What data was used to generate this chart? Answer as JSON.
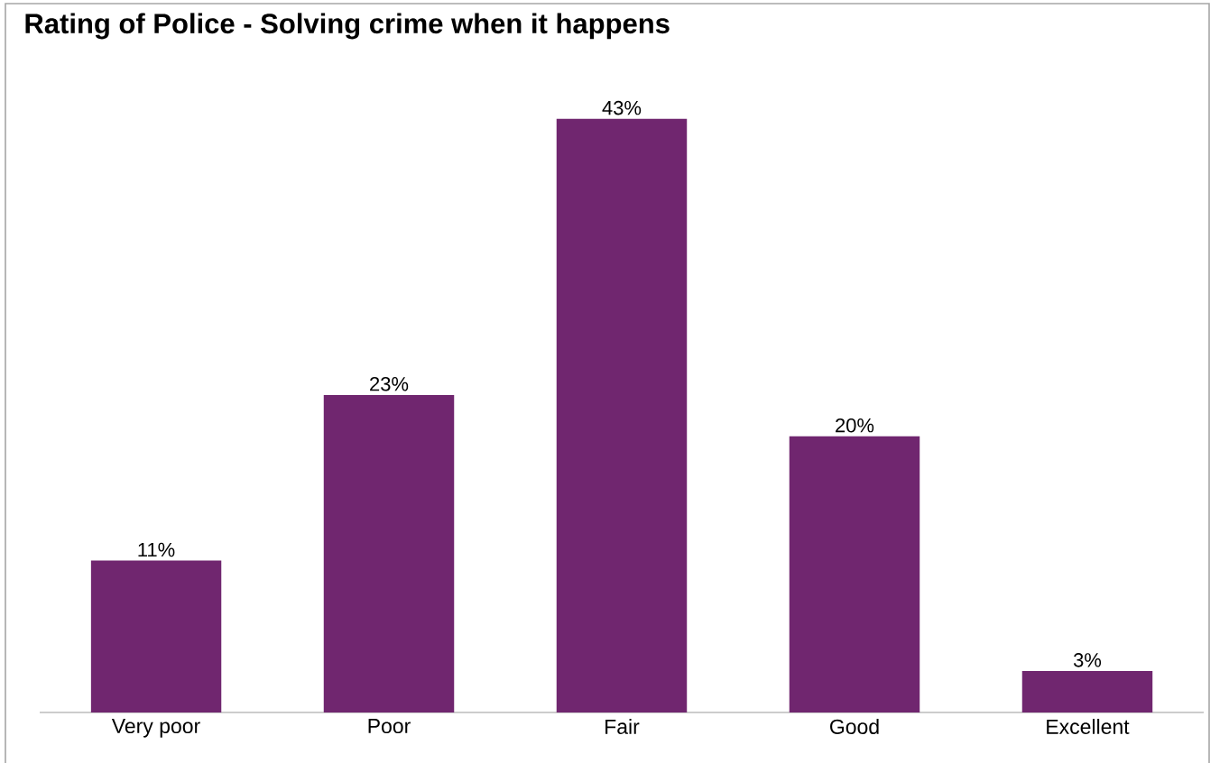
{
  "chart_data": {
    "type": "bar",
    "title": "Rating of Police - Solving crime when it happens",
    "categories": [
      "Very poor",
      "Poor",
      "Fair",
      "Good",
      "Excellent"
    ],
    "values": [
      11,
      23,
      43,
      20,
      3
    ],
    "value_labels": [
      "11%",
      "23%",
      "43%",
      "20%",
      "3%"
    ],
    "color": "#70266f"
  }
}
